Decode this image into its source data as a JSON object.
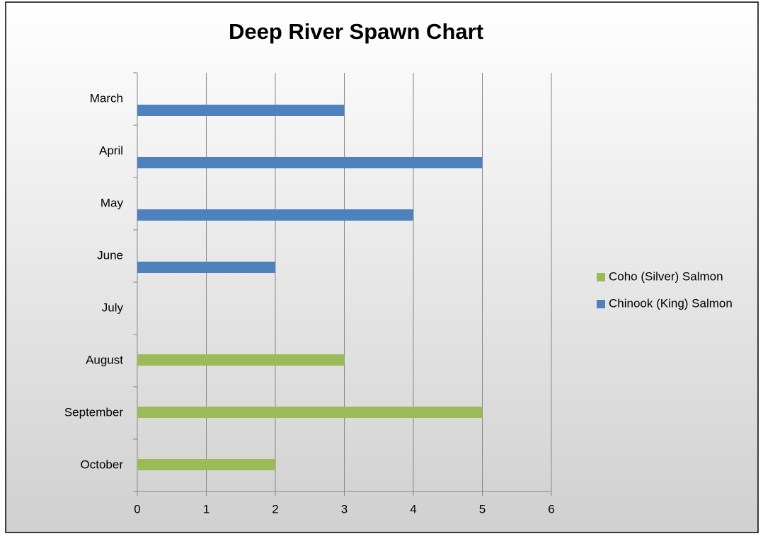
{
  "chart_data": {
    "type": "bar",
    "orientation": "horizontal",
    "title": "Deep River Spawn Chart",
    "categories": [
      "March",
      "April",
      "May",
      "June",
      "July",
      "August",
      "September",
      "October"
    ],
    "series": [
      {
        "name": "Coho (Silver) Salmon",
        "color": "#9bbb59",
        "values": [
          null,
          null,
          null,
          null,
          null,
          3,
          5,
          2
        ]
      },
      {
        "name": "Chinook (King) Salmon",
        "color": "#4f81bd",
        "values": [
          3,
          5,
          4,
          2,
          null,
          null,
          null,
          null
        ]
      }
    ],
    "xlim": [
      0,
      6
    ],
    "xticks": [
      0,
      1,
      2,
      3,
      4,
      5,
      6
    ],
    "grid": true,
    "legend": "right"
  }
}
